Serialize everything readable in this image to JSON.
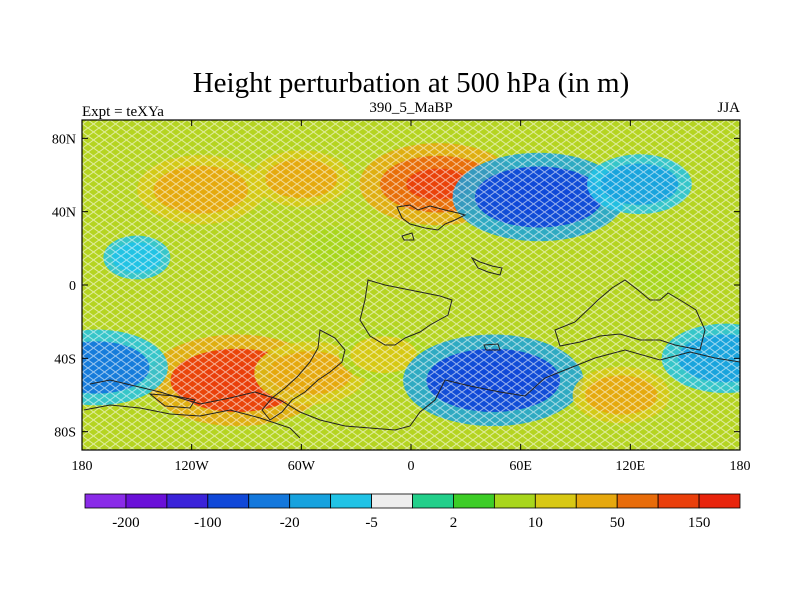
{
  "chart_data": {
    "type": "heatmap",
    "title": "Height perturbation at 500 hPa (in m)",
    "left_label": "Expt = teXYa",
    "center_label": "390_5_MaBP",
    "right_label": "JJA",
    "x_ticks": [
      "180",
      "120W",
      "60W",
      "0",
      "60E",
      "120E",
      "180"
    ],
    "x_tick_values": [
      -180,
      -120,
      -60,
      0,
      60,
      120,
      180
    ],
    "y_ticks": [
      "80N",
      "40N",
      "0",
      "40S",
      "80S"
    ],
    "y_tick_values": [
      80,
      40,
      0,
      -40,
      -80
    ],
    "xlim": [
      -180,
      180
    ],
    "ylim": [
      -90,
      90
    ],
    "colorbar": {
      "levels": [
        "-200",
        "-100",
        "-20",
        "-5",
        "2",
        "10",
        "50",
        "150"
      ],
      "level_positions": [
        1,
        3,
        5,
        7,
        9,
        11,
        13,
        15
      ],
      "colors": [
        "#8a2be8",
        "#6a10d8",
        "#3b23d9",
        "#1048d8",
        "#1478dc",
        "#17a2de",
        "#21c3e6",
        "#eeeeee",
        "#22cf8a",
        "#3dcd27",
        "#a8d61c",
        "#d8c814",
        "#e6a80e",
        "#e86c0a",
        "#ea3f0b",
        "#e8240c"
      ]
    },
    "anomaly_regions": [
      {
        "lon": -95,
        "lat": -52,
        "value": 160
      },
      {
        "lon": -55,
        "lat": -48,
        "value": 70
      },
      {
        "lon": -15,
        "lat": -38,
        "value": 40
      },
      {
        "lon": -115,
        "lat": 52,
        "value": 90
      },
      {
        "lon": -60,
        "lat": 58,
        "value": 50
      },
      {
        "lon": 15,
        "lat": 55,
        "value": 130
      },
      {
        "lon": 70,
        "lat": 48,
        "value": -150
      },
      {
        "lon": 125,
        "lat": 55,
        "value": -60
      },
      {
        "lon": 45,
        "lat": -52,
        "value": -160
      },
      {
        "lon": -172,
        "lat": -45,
        "value": -110
      },
      {
        "lon": 172,
        "lat": -40,
        "value": -90
      },
      {
        "lon": 115,
        "lat": -60,
        "value": 50
      },
      {
        "lon": 140,
        "lat": 5,
        "value": 15
      },
      {
        "lon": -150,
        "lat": 15,
        "value": -10
      },
      {
        "lon": -40,
        "lat": 20,
        "value": 10
      }
    ]
  }
}
